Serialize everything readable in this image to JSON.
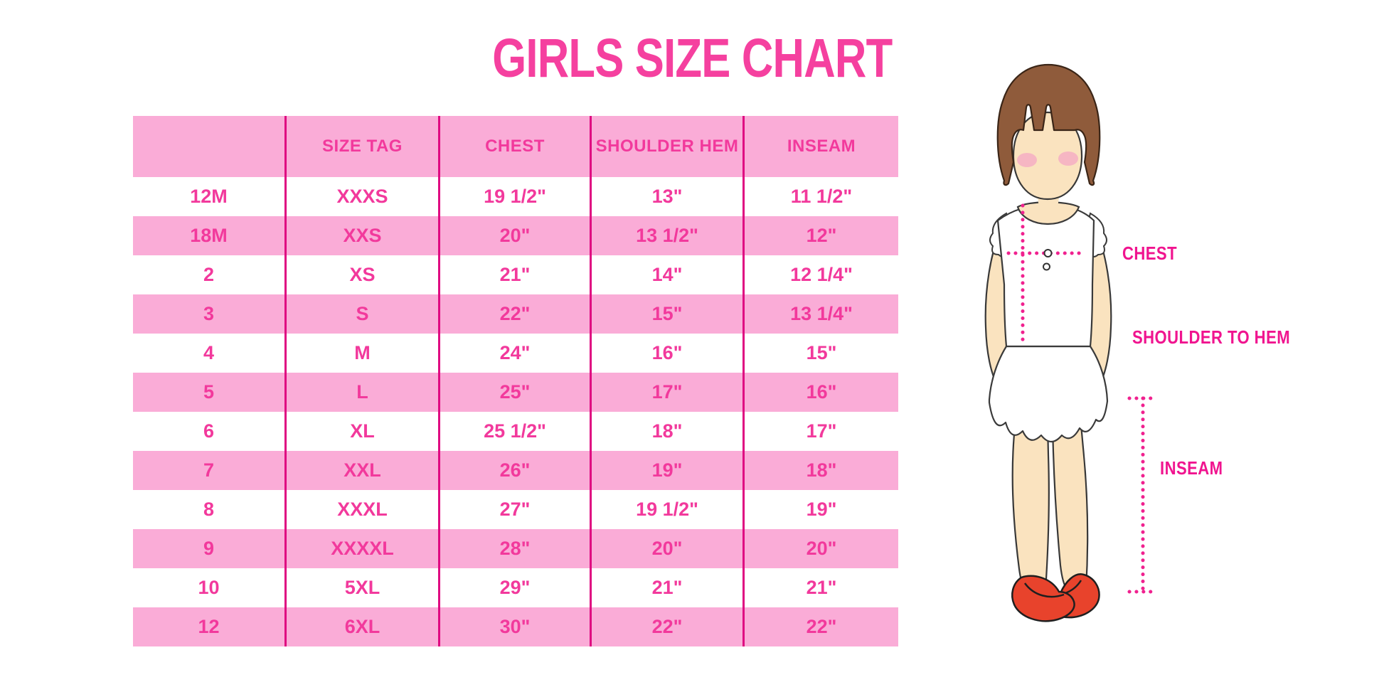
{
  "title": "GIRLS SIZE CHART",
  "chart_data": {
    "type": "table",
    "title": "GIRLS SIZE CHART",
    "columns": [
      "",
      "SIZE TAG",
      "CHEST",
      "SHOULDER HEM",
      "INSEAM"
    ],
    "rows": [
      [
        "12M",
        "XXXS",
        "19 1/2\"",
        "13\"",
        "11 1/2\""
      ],
      [
        "18M",
        "XXS",
        "20\"",
        "13 1/2\"",
        "12\""
      ],
      [
        "2",
        "XS",
        "21\"",
        "14\"",
        "12 1/4\""
      ],
      [
        "3",
        "S",
        "22\"",
        "15\"",
        "13 1/4\""
      ],
      [
        "4",
        "M",
        "24\"",
        "16\"",
        "15\""
      ],
      [
        "5",
        "L",
        "25\"",
        "17\"",
        "16\""
      ],
      [
        "6",
        "XL",
        "25 1/2\"",
        "18\"",
        "17\""
      ],
      [
        "7",
        "XXL",
        "26\"",
        "19\"",
        "18\""
      ],
      [
        "8",
        "XXXL",
        "27\"",
        "19 1/2\"",
        "19\""
      ],
      [
        "9",
        "XXXXL",
        "28\"",
        "20\"",
        "20\""
      ],
      [
        "10",
        "5XL",
        "29\"",
        "21\"",
        "21\""
      ],
      [
        "12",
        "6XL",
        "30\"",
        "22\"",
        "22\""
      ]
    ],
    "layout": {
      "striped_rows": "pink on header and alternate rows",
      "grid": "vertical column dividers only"
    }
  },
  "diagram": {
    "labels": {
      "chest": "CHEST",
      "shoulder_to_hem": "SHOULDER TO HEM",
      "inseam": "INSEAM"
    }
  },
  "colors": {
    "title-pink": "#F5409F",
    "row-pink": "#FAACD7",
    "line-magenta": "#DF0981",
    "text-pink": "#F2399C",
    "label-magenta": "#F0148F",
    "dot-magenta": "#F0218F",
    "hair-brown": "#8F5B3B",
    "skin": "#FAE3BF",
    "blush": "#F5A8C5",
    "shoe-red": "#E8432C"
  }
}
